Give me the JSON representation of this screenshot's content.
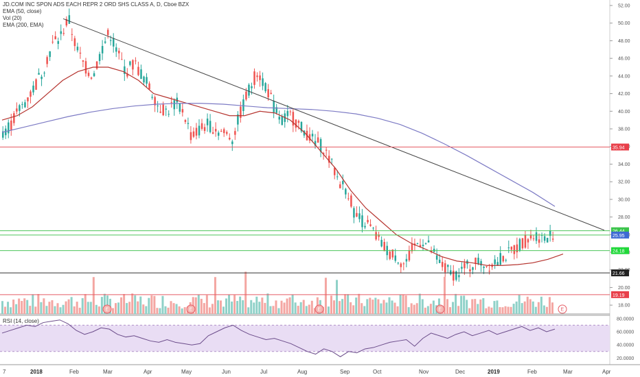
{
  "legend": {
    "title": "JD.COM INC SPON ADS EACH REPR 2 ORD SHS CLASS A, D, Cboe BZX",
    "ema50": "EMA (50, close)",
    "vol": "Vol (20)",
    "ema200": "EMA (200, EMA)"
  },
  "rsi_label": "RSI (14, close)",
  "chart_data": [
    {
      "type": "candlestick",
      "price_axis": {
        "min": 17,
        "max": 52,
        "ticks": [
          "18.00",
          "20.00",
          "22.00",
          "24.00",
          "26.00",
          "28.00",
          "30.00",
          "32.00",
          "34.00",
          "36.00",
          "38.00",
          "40.00",
          "42.00",
          "44.00",
          "46.00",
          "48.00",
          "50.00",
          "52.00"
        ]
      },
      "x_ticks": [
        {
          "label": "7",
          "bold": false
        },
        {
          "label": "2018",
          "bold": true
        },
        {
          "label": "Feb",
          "bold": false
        },
        {
          "label": "Mar",
          "bold": false
        },
        {
          "label": "Apr",
          "bold": false
        },
        {
          "label": "May",
          "bold": false
        },
        {
          "label": "Jun",
          "bold": false
        },
        {
          "label": "Jul",
          "bold": false
        },
        {
          "label": "Aug",
          "bold": false
        },
        {
          "label": "Sep",
          "bold": false
        },
        {
          "label": "Oct",
          "bold": false
        },
        {
          "label": "Nov",
          "bold": false
        },
        {
          "label": "Dec",
          "bold": false
        },
        {
          "label": "2019",
          "bold": true
        },
        {
          "label": "Feb",
          "bold": false
        },
        {
          "label": "Mar",
          "bold": false
        },
        {
          "label": "Apr",
          "bold": false
        }
      ],
      "price_trend": [
        37.8,
        38.5,
        40.2,
        41.5,
        43.0,
        45.0,
        47.5,
        48.5,
        50.5,
        47.0,
        45.0,
        44.0,
        47.0,
        49.0,
        46.5,
        44.5,
        45.5,
        44.0,
        42.5,
        40.5,
        40.0,
        41.0,
        40.0,
        37.0,
        38.0,
        38.5,
        38.0,
        37.5,
        37.0,
        40.0,
        42.5,
        44.5,
        43.0,
        40.5,
        39.0,
        39.5,
        38.5,
        37.5,
        36.5,
        36.0,
        34.0,
        32.0,
        31.0,
        28.0,
        27.5,
        26.5,
        25.0,
        24.0,
        23.5,
        22.5,
        24.5,
        25.5,
        24.5,
        23.0,
        22.0,
        21.5,
        22.0,
        22.5,
        23.0,
        22.5,
        23.0,
        23.5,
        24.0,
        25.0,
        25.5,
        26.0,
        25.5,
        26.2
      ],
      "ema50": [
        39.0,
        39.5,
        40.5,
        42.0,
        43.5,
        44.5,
        45.0,
        45.0,
        44.5,
        43.5,
        42.0,
        41.5,
        41.0,
        40.5,
        40.0,
        39.5,
        39.5,
        40.0,
        39.8,
        39.0,
        37.5,
        35.5,
        33.5,
        31.0,
        29.0,
        27.5,
        26.0,
        25.0,
        24.3,
        23.5,
        23.0,
        22.8,
        22.5,
        22.5,
        22.6,
        22.8,
        23.2,
        23.8
      ],
      "ema200": [
        37.6,
        38.2,
        38.8,
        39.4,
        39.9,
        40.3,
        40.6,
        40.8,
        40.9,
        40.9,
        40.8,
        40.6,
        40.4,
        40.3,
        40.2,
        40.0,
        39.7,
        39.2,
        38.5,
        37.5,
        36.3,
        35.0,
        33.6,
        32.2,
        30.8,
        29.2
      ],
      "trendline": [
        [
          50.5
        ],
        [
          26.5
        ]
      ],
      "horizontal_levels": [
        {
          "value": "35.94",
          "color": "#e8404a",
          "line": "#e55a63"
        },
        {
          "value": "26.44",
          "color": "#3bc44b",
          "line": "#4cc45a"
        },
        {
          "value": "25.95",
          "color": "#3f6ad3",
          "line": "#4cc45a"
        },
        {
          "value": "24.18",
          "color": "#21d83a",
          "line": "#4cc45a"
        },
        {
          "value": "21.66",
          "color": "#222222",
          "line": "#333333"
        },
        {
          "value": "19.19",
          "color": "#e8404a",
          "line": "#e55a63"
        }
      ],
      "earnings_markers": [
        "E",
        "E",
        "E",
        "E",
        "E"
      ]
    },
    {
      "type": "line",
      "name": "RSI (14, close)",
      "axis_ticks": [
        "20.0000",
        "40.0000",
        "60.0000",
        "80.0000"
      ],
      "band": [
        30,
        70
      ],
      "values": [
        58,
        62,
        66,
        70,
        68,
        74,
        76,
        78,
        72,
        62,
        56,
        60,
        66,
        64,
        56,
        52,
        54,
        50,
        46,
        44,
        48,
        44,
        42,
        40,
        42,
        54,
        60,
        66,
        70,
        62,
        56,
        52,
        48,
        50,
        46,
        42,
        36,
        30,
        26,
        34,
        30,
        22,
        30,
        28,
        34,
        36,
        40,
        44,
        46,
        48,
        38,
        50,
        58,
        54,
        50,
        56,
        60,
        54,
        58,
        62,
        56,
        60,
        64,
        68,
        62,
        66,
        60,
        64
      ]
    }
  ]
}
